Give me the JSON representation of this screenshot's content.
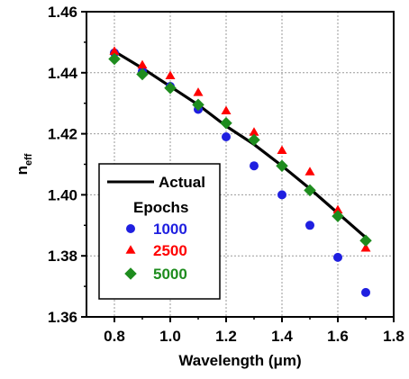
{
  "chart_data": {
    "type": "scatter",
    "title": "",
    "xlabel": "Wavelength (μm)",
    "ylabel": "n",
    "ylabel_sub": "eff",
    "xlim": [
      0.7,
      1.8
    ],
    "ylim": [
      1.36,
      1.46
    ],
    "x_ticks": [
      "0.8",
      "1.0",
      "1.2",
      "1.4",
      "1.6",
      "1.8"
    ],
    "y_ticks": [
      "1.36",
      "1.38",
      "1.40",
      "1.42",
      "1.44",
      "1.46"
    ],
    "grid": true,
    "legend_position": "lower-left",
    "legend_group_title": "Epochs",
    "line": {
      "name": "Actual",
      "color": "#000000",
      "x": [
        0.8,
        0.9,
        1.0,
        1.1,
        1.2,
        1.3,
        1.4,
        1.5,
        1.6,
        1.7
      ],
      "y": [
        1.447,
        1.4415,
        1.4355,
        1.4295,
        1.4225,
        1.4165,
        1.4095,
        1.402,
        1.394,
        1.386
      ]
    },
    "series": [
      {
        "name": "1000",
        "marker": "circle",
        "color": "#1f1fe0",
        "x": [
          0.8,
          0.9,
          1.0,
          1.1,
          1.2,
          1.3,
          1.4,
          1.5,
          1.6,
          1.7
        ],
        "y": [
          1.4465,
          1.4405,
          1.4355,
          1.428,
          1.419,
          1.4095,
          1.4,
          1.39,
          1.3795,
          1.368
        ]
      },
      {
        "name": "2500",
        "marker": "triangle",
        "color": "#ff0000",
        "x": [
          0.8,
          0.9,
          1.0,
          1.1,
          1.2,
          1.3,
          1.4,
          1.5,
          1.6,
          1.7
        ],
        "y": [
          1.447,
          1.4425,
          1.439,
          1.4335,
          1.4275,
          1.4205,
          1.4145,
          1.4075,
          1.395,
          1.3825
        ]
      },
      {
        "name": "5000",
        "marker": "diamond",
        "color": "#1e8c1e",
        "x": [
          0.8,
          0.9,
          1.0,
          1.1,
          1.2,
          1.3,
          1.4,
          1.5,
          1.6,
          1.7
        ],
        "y": [
          1.4445,
          1.4395,
          1.435,
          1.4295,
          1.4235,
          1.418,
          1.4095,
          1.4015,
          1.393,
          1.385
        ]
      }
    ]
  }
}
